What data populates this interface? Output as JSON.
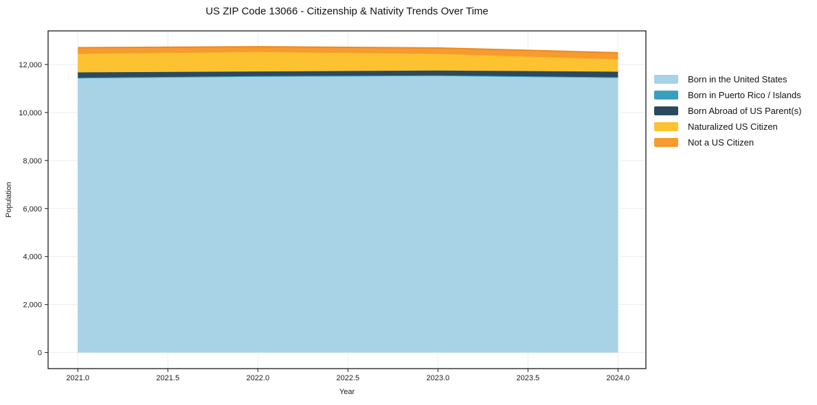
{
  "title": "US ZIP Code 13066 - Citizenship & Nativity Trends Over Time",
  "xlabel": "Year",
  "ylabel": "Population",
  "chart_data": {
    "type": "area",
    "stacked": true,
    "grid": true,
    "legend_position": "right",
    "x": [
      2021,
      2022,
      2023,
      2024
    ],
    "series": [
      {
        "name": "Born in the United States",
        "color": "#a8d2e5",
        "line_color": "#a8d2e5",
        "values": [
          11420,
          11490,
          11520,
          11440
        ]
      },
      {
        "name": "Born in Puerto Rico / Islands",
        "color": "#3a9fbf",
        "line_color": "#3a9fbf",
        "values": [
          30,
          30,
          30,
          30
        ]
      },
      {
        "name": "Born Abroad of US Parent(s)",
        "color": "#2b4a5e",
        "line_color": "#2b4a5e",
        "values": [
          220,
          190,
          200,
          230
        ]
      },
      {
        "name": "Naturalized US Citizen",
        "color": "#fdc230",
        "line_color": "#fdc230",
        "values": [
          770,
          810,
          690,
          510
        ]
      },
      {
        "name": "Not a US Citizen",
        "color": "#f79b2e",
        "line_color": "#ee8a1a",
        "values": [
          260,
          220,
          250,
          280
        ]
      }
    ],
    "totals": [
      12700,
      12740,
      12690,
      12490
    ],
    "xticks": [
      2021.0,
      2021.5,
      2022.0,
      2022.5,
      2023.0,
      2023.5,
      2024.0
    ],
    "xtick_labels": [
      "2021.0",
      "2021.5",
      "2022.0",
      "2022.5",
      "2023.0",
      "2023.5",
      "2024.0"
    ],
    "yticks": [
      0,
      2000,
      4000,
      6000,
      8000,
      10000,
      12000
    ],
    "ytick_labels": [
      "0",
      "2,000",
      "4,000",
      "6,000",
      "8,000",
      "10,000",
      "12,000"
    ],
    "xlim": [
      2020.835,
      2024.155
    ],
    "ylim": [
      -670,
      13400
    ],
    "grid_color": "#ececec"
  }
}
